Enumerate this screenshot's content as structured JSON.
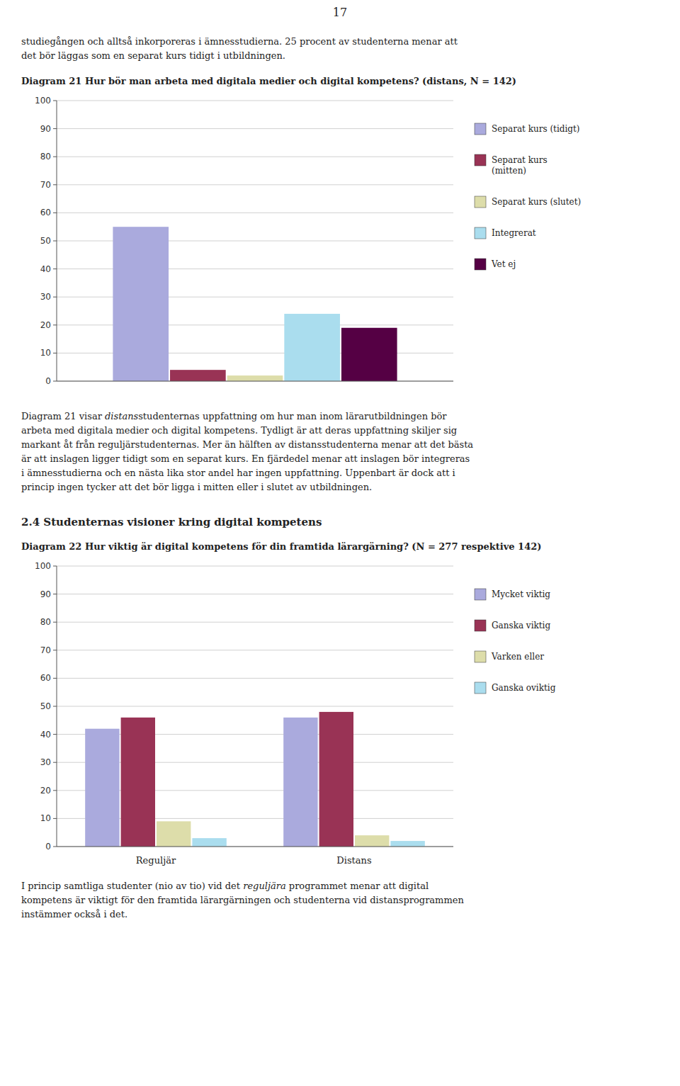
{
  "page_number": "17",
  "top_text": [
    "studiegången och alltså inkorporeras i ämnesstudierna. 25 procent av studenterna menar att",
    "det bör läggas som en separat kurs tidigt i utbildningen."
  ],
  "between_text": [
    [
      "Diagram 21 visar ",
      "distans",
      "studenternas uppfattning om hur man inom lärarutbildningen bör"
    ],
    "arbeta med digitala medier och digital kompetens. Tydligt är att deras uppfattning skiljer sig",
    "markant åt från reguljärstudenternas. Mer än hälften av distansstudenterna menar att det bästa",
    "är att inslagen ligger tidigt som en separat kurs. En fjärdedel menar att inslagen bör integreras",
    "i ämnesstudierna och en nästa lika stor andel har ingen uppfattning. Uppenbart är dock att i",
    "princip ingen tycker att det bör ligga i mitten eller i slutet av utbildningen."
  ],
  "section_title": "2.4 Studenternas visioner kring digital kompetens",
  "bottom_text": [
    [
      "I princip samtliga studenter (nio av tio) vid det ",
      "reguljära",
      " programmet menar att digital"
    ],
    "kompetens är viktigt för den framtida lärargärningen och studenterna vid distansprogrammen",
    "instämmer också i det."
  ],
  "chart_data": [
    {
      "type": "bar",
      "title": "Diagram 21 Hur bör man arbeta med digitala medier och digital kompetens? (distans, N = 142)",
      "categories": [
        null
      ],
      "series": [
        {
          "name": "Separat kurs (tidigt)",
          "color": "#aaaadd",
          "values": [
            55
          ]
        },
        {
          "name": "Separat kurs\n(mitten)",
          "color": "#993355",
          "values": [
            4
          ]
        },
        {
          "name": "Separat kurs (slutet)",
          "color": "#ddddaa",
          "values": [
            2
          ]
        },
        {
          "name": "Integrerat",
          "color": "#aaddee",
          "values": [
            24
          ]
        },
        {
          "name": "Vet ej",
          "color": "#550044",
          "values": [
            19
          ]
        }
      ],
      "ylim": [
        0,
        100
      ],
      "yticks": [
        0,
        10,
        20,
        30,
        40,
        50,
        60,
        70,
        80,
        90,
        100
      ],
      "grid": true,
      "legend": "right"
    },
    {
      "type": "bar",
      "title": "Diagram 22 Hur viktig är digital kompetens för din framtida lärargärning? (N = 277 respektive 142)",
      "categories": [
        "Reguljär",
        "Distans"
      ],
      "series": [
        {
          "name": "Mycket viktig",
          "color": "#aaaadd",
          "values": [
            42,
            46
          ]
        },
        {
          "name": "Ganska viktig",
          "color": "#993355",
          "values": [
            46,
            48
          ]
        },
        {
          "name": "Varken eller",
          "color": "#ddddaa",
          "values": [
            9,
            4
          ]
        },
        {
          "name": "Ganska oviktig",
          "color": "#aaddee",
          "values": [
            3,
            2
          ]
        }
      ],
      "ylim": [
        0,
        100
      ],
      "yticks": [
        0,
        10,
        20,
        30,
        40,
        50,
        60,
        70,
        80,
        90,
        100
      ],
      "grid": true,
      "legend": "right"
    }
  ]
}
